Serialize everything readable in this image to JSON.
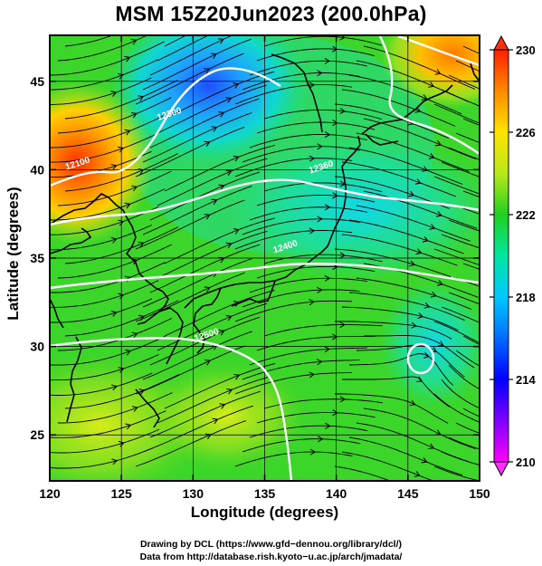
{
  "title": "MSM 15Z20Jun2023 (200.0hPa)",
  "x_axis": {
    "label": "Longitude (degrees)",
    "range": [
      120,
      150
    ],
    "ticks": [
      120,
      125,
      130,
      135,
      140,
      145,
      150
    ]
  },
  "y_axis": {
    "label": "Latitude  (degrees)",
    "range": [
      22.4,
      47.6
    ],
    "ticks": [
      25,
      30,
      35,
      40,
      45
    ]
  },
  "colorbar": {
    "min": 210,
    "max": 230,
    "ticks": [
      210,
      214,
      218,
      222,
      226,
      230
    ],
    "colors": [
      "#ff00ff",
      "#0000ff",
      "#00c8ff",
      "#00e6a0",
      "#20d020",
      "#b8e81a",
      "#ffe400",
      "#ff8a00",
      "#ff2000"
    ]
  },
  "contours": [
    {
      "label": "12100",
      "lon": 122.0,
      "lat": 40.2
    },
    {
      "label": "12300",
      "lon": 128.4,
      "lat": 43.0
    },
    {
      "label": "12360",
      "lon": 139.0,
      "lat": 40.0
    },
    {
      "label": "12400",
      "lon": 136.5,
      "lat": 35.5
    },
    {
      "label": "12500",
      "lon": 131.0,
      "lat": 30.5
    }
  ],
  "credits": {
    "line1": "Drawing by DCL (https://www.gfd−dennou.org/library/dcl/)",
    "line2": "Data from http://database.rish.kyoto−u.ac.jp/arch/jmadata/"
  }
}
